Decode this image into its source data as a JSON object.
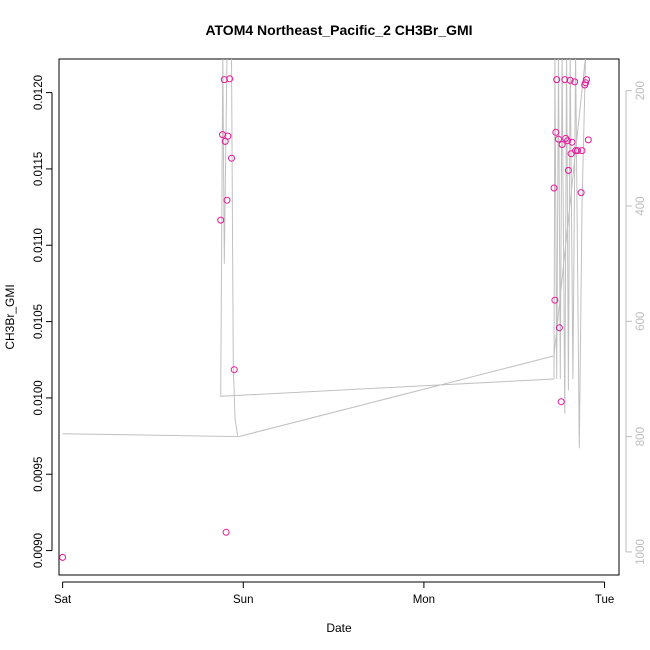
{
  "chart_data": {
    "type": "scatter",
    "title": "ATOM4 Northeast_Pacific_2 CH3Br_GMI",
    "xlabel": "Date",
    "ylabel": "CH3Br_GMI",
    "xlim": [
      -0.02,
      3.08
    ],
    "ylim": [
      0.00884,
      0.01222
    ],
    "y2lim": [
      1040,
      145
    ],
    "xticks": [
      0,
      1,
      2,
      3
    ],
    "xtick_labels": [
      "Sat",
      "Sun",
      "Mon",
      "Tue"
    ],
    "yticks": [
      0.009,
      0.0095,
      0.01,
      0.0105,
      0.011,
      0.0115,
      0.012
    ],
    "ytick_labels": [
      "0.0090",
      "0.0095",
      "0.0100",
      "0.0105",
      "0.0110",
      "0.0115",
      "0.0120"
    ],
    "y2ticks": [
      200,
      400,
      600,
      800,
      1000
    ],
    "y2tick_labels": [
      "200",
      "400",
      "600",
      "800",
      "1000"
    ],
    "colors": {
      "points": "#e8179a",
      "pressure_line": "#c0c0c0",
      "axis": "#000000",
      "right_axis": "#bdbdbd"
    },
    "series": [
      {
        "values": [
          [
            0.0,
            0.008955
          ],
          [
            0.875,
            0.011165
          ],
          [
            0.885,
            0.011725
          ],
          [
            0.895,
            0.012085
          ],
          [
            0.9,
            0.01168
          ],
          [
            0.905,
            0.00912
          ],
          [
            0.91,
            0.011295
          ],
          [
            0.915,
            0.011715
          ],
          [
            0.925,
            0.01209
          ],
          [
            0.935,
            0.01157
          ],
          [
            0.95,
            0.010185
          ],
          [
            2.72,
            0.011375
          ],
          [
            2.725,
            0.01064
          ],
          [
            2.73,
            0.01174
          ],
          [
            2.735,
            0.012085
          ],
          [
            2.745,
            0.011695
          ],
          [
            2.75,
            0.01046
          ],
          [
            2.76,
            0.009975
          ],
          [
            2.765,
            0.01166
          ],
          [
            2.78,
            0.012085
          ],
          [
            2.785,
            0.0117
          ],
          [
            2.795,
            0.011685
          ],
          [
            2.8,
            0.01149
          ],
          [
            2.81,
            0.01208
          ],
          [
            2.815,
            0.0116
          ],
          [
            2.82,
            0.011675
          ],
          [
            2.835,
            0.01207
          ],
          [
            2.84,
            0.01162
          ],
          [
            2.85,
            0.01162
          ],
          [
            2.87,
            0.011345
          ],
          [
            2.875,
            0.01162
          ],
          [
            2.89,
            0.01205
          ],
          [
            2.895,
            0.012065
          ],
          [
            2.9,
            0.012085
          ],
          [
            2.91,
            0.01169
          ]
        ]
      },
      {
        "axis": "right",
        "values": [
          [
            0.0,
            795
          ],
          [
            0.97,
            800
          ],
          [
            0.955,
            770
          ],
          [
            0.945,
            680
          ],
          [
            0.935,
            140
          ],
          [
            0.91,
            140
          ],
          [
            0.895,
            500
          ],
          [
            0.887,
            140
          ],
          [
            0.875,
            730
          ],
          [
            2.72,
            700
          ],
          [
            2.725,
            140
          ],
          [
            2.735,
            700
          ],
          [
            2.745,
            140
          ],
          [
            2.755,
            700
          ],
          [
            2.765,
            140
          ],
          [
            2.78,
            760
          ],
          [
            2.79,
            140
          ],
          [
            2.8,
            720
          ],
          [
            2.81,
            140
          ],
          [
            2.825,
            700
          ],
          [
            2.84,
            140
          ],
          [
            2.86,
            820
          ],
          [
            2.875,
            400
          ],
          [
            2.895,
            140
          ],
          [
            2.72,
            660
          ],
          [
            0.975,
            800
          ]
        ]
      }
    ]
  }
}
